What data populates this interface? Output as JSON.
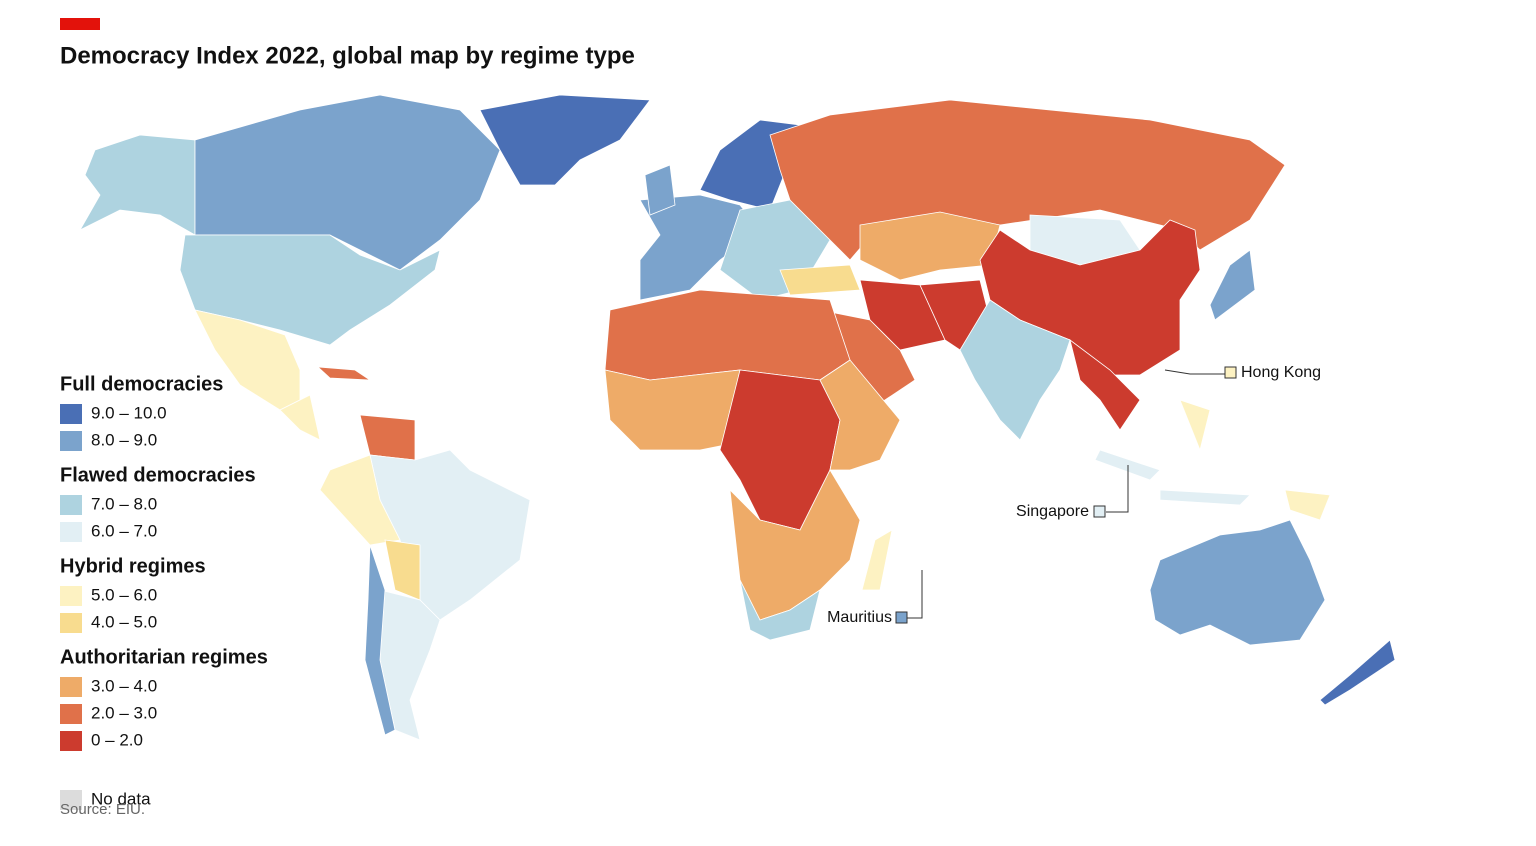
{
  "header": {
    "title": "Democracy Index 2022, global map by regime type"
  },
  "legend": [
    {
      "heading": "Full democracies",
      "items": [
        {
          "label": "9.0 – 10.0",
          "color": "#4a6fb5"
        },
        {
          "label": "8.0 – 9.0",
          "color": "#7ba3cc"
        }
      ]
    },
    {
      "heading": "Flawed democracies",
      "items": [
        {
          "label": "7.0 – 8.0",
          "color": "#aed3e0"
        },
        {
          "label": "6.0 – 7.0",
          "color": "#e2eff4"
        }
      ]
    },
    {
      "heading": "Hybrid regimes",
      "items": [
        {
          "label": "5.0 – 6.0",
          "color": "#fdf2c2"
        },
        {
          "label": "4.0 – 5.0",
          "color": "#f8dc8f"
        }
      ]
    },
    {
      "heading": "Authoritarian regimes",
      "items": [
        {
          "label": "3.0 – 4.0",
          "color": "#eeab68"
        },
        {
          "label": "2.0 – 3.0",
          "color": "#e0714a"
        },
        {
          "label": "0 – 2.0",
          "color": "#cc3b2e"
        }
      ]
    }
  ],
  "no_data": {
    "label": "No data",
    "color": "#dcdcdc"
  },
  "callouts": [
    "Hong Kong",
    "Singapore",
    "Mauritius"
  ],
  "source": "Source: EIU."
}
